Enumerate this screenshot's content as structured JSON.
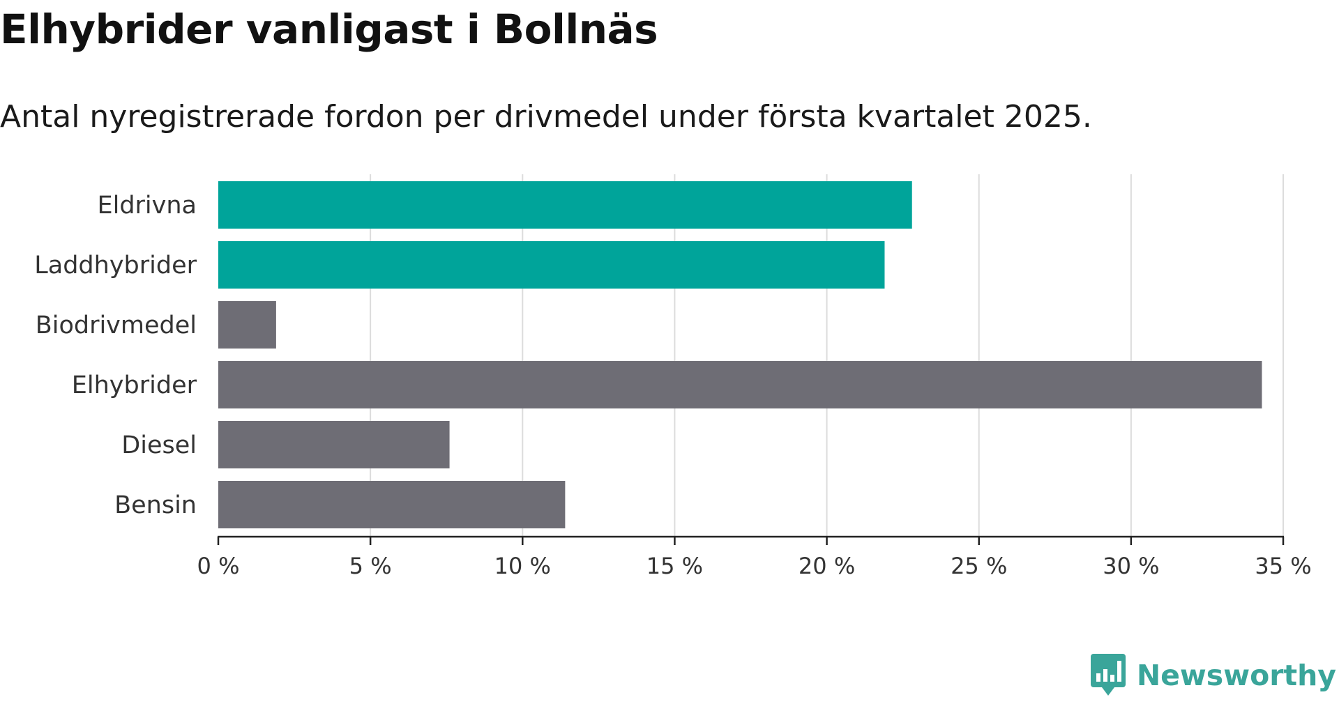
{
  "title": "Elhybrider vanligast i Bollnäs",
  "subtitle": "Antal nyregistrerade fordon per drivmedel under första kvartalet 2025.",
  "brand": {
    "name": "Newsworthy",
    "icon": "newsworthy-logo-icon"
  },
  "colors": {
    "highlight": "#00a49a",
    "base": "#6e6d75",
    "grid": "#dcdcdc",
    "axis": "#222222",
    "brand": "#3aa59a"
  },
  "chart_data": {
    "type": "bar",
    "orientation": "horizontal",
    "categories": [
      "Eldrivna",
      "Laddhybrider",
      "Biodrivmedel",
      "Elhybrider",
      "Diesel",
      "Bensin"
    ],
    "values": [
      22.8,
      21.9,
      1.9,
      34.3,
      7.6,
      11.4
    ],
    "highlighted": [
      true,
      true,
      false,
      false,
      false,
      false
    ],
    "unit": "%",
    "xlim": [
      0,
      35
    ],
    "xticks": [
      0,
      5,
      10,
      15,
      20,
      25,
      30,
      35
    ],
    "xtick_labels": [
      "0 %",
      "5 %",
      "10 %",
      "15 %",
      "20 %",
      "25 %",
      "30 %",
      "35 %"
    ],
    "grid": "vertical",
    "legend": "none"
  }
}
